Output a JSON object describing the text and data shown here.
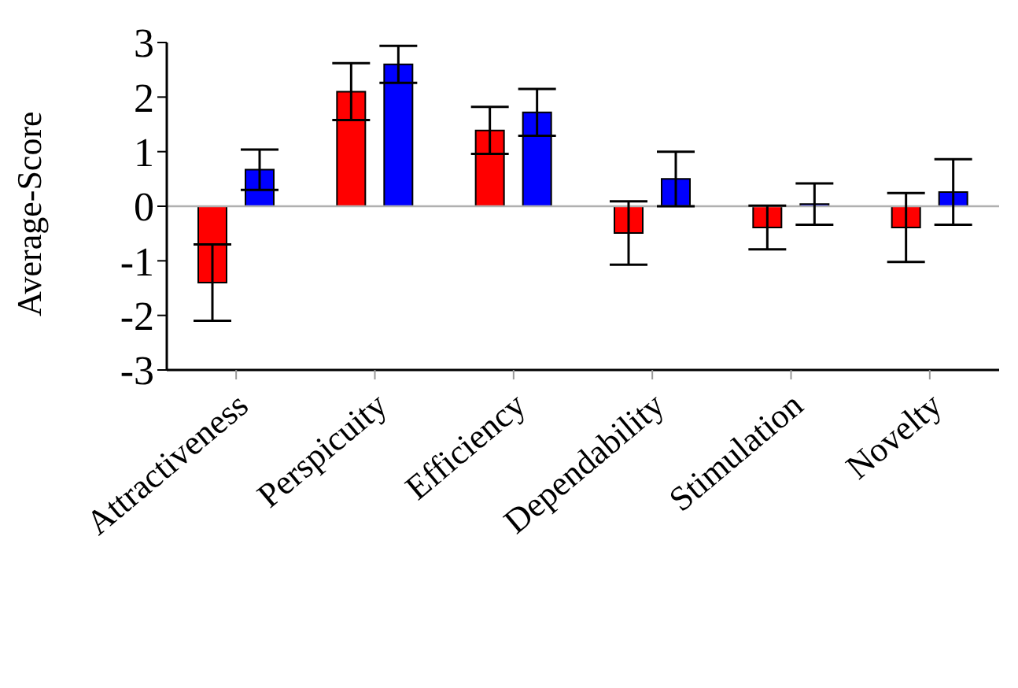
{
  "chart_data": {
    "type": "bar",
    "ylabel": "Average-Score",
    "categories": [
      "Attractiveness",
      "Perspicuity",
      "Efficiency",
      "Dependability",
      "Stimulation",
      "Novelty"
    ],
    "series": [
      {
        "color": "#ff0000",
        "values": [
          -1.4,
          2.1,
          1.39,
          -0.49,
          -0.39,
          -0.39
        ],
        "errors": [
          0.7,
          0.52,
          0.43,
          0.58,
          0.4,
          0.63
        ]
      },
      {
        "color": "#0000ff",
        "values": [
          0.67,
          2.6,
          1.72,
          0.5,
          0.04,
          0.26
        ],
        "errors": [
          0.37,
          0.34,
          0.43,
          0.5,
          0.38,
          0.6
        ]
      }
    ],
    "ylim": [
      -3,
      3
    ],
    "yticks": [
      -3,
      -2,
      -1,
      0,
      1,
      2,
      3
    ],
    "grid": false,
    "legend": false,
    "ref_lines": [
      {
        "axis": "y",
        "value": 0,
        "color": "#b0b0b0"
      }
    ]
  }
}
